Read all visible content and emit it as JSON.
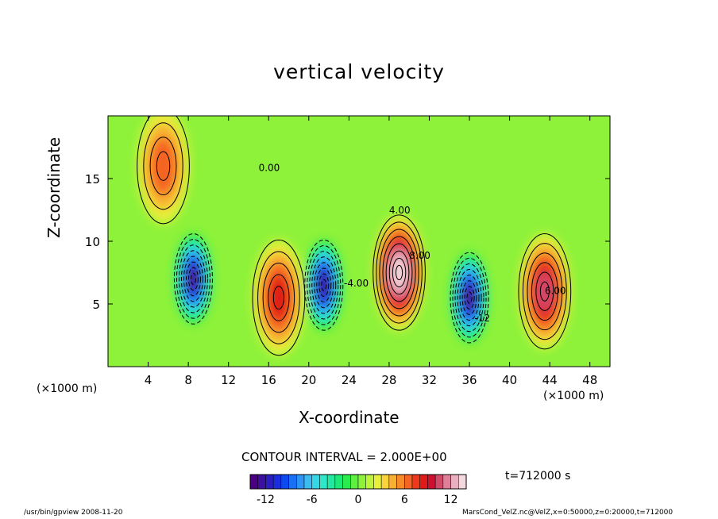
{
  "chart_data": {
    "type": "heatmap",
    "title": "vertical velocity",
    "xlabel": "X-coordinate",
    "ylabel": "Z-coordinate",
    "x_unit_label_left": "(×1000 m)",
    "x_unit_label_right": "(×1000 m)",
    "xlim": [
      0,
      50
    ],
    "ylim": [
      0,
      20
    ],
    "x_ticks": [
      4,
      8,
      12,
      16,
      20,
      24,
      28,
      32,
      36,
      40,
      44,
      48
    ],
    "y_ticks": [
      5,
      10,
      15
    ],
    "contour_interval_label": "CONTOUR INTERVAL = 2.000E+00",
    "time_label": "t=712000 s",
    "colorbar": {
      "range": [
        -14,
        14
      ],
      "ticks": [
        -12,
        -6,
        0,
        6,
        12
      ],
      "colors": [
        "#4b0082",
        "#3c0fa0",
        "#2a1ec0",
        "#1a2ee0",
        "#0a4af0",
        "#1a70f5",
        "#2d95f5",
        "#3cbaf2",
        "#35d6e6",
        "#2ee6c8",
        "#22e8a0",
        "#1cea78",
        "#2aec4e",
        "#5ef040",
        "#8ef23a",
        "#bef43a",
        "#e6f03a",
        "#f8d43a",
        "#f8b032",
        "#f88a2a",
        "#f46422",
        "#ee3a1c",
        "#e01a18",
        "#ce1030",
        "#d24a6a",
        "#e07f98",
        "#eab0c0",
        "#f4d8e0"
      ]
    },
    "annotations": [
      "0.00",
      "4.00",
      "-4.00",
      "-12",
      "8.00",
      "6.00"
    ],
    "features": [
      {
        "kind": "updraft",
        "x": 29,
        "z": 7.5,
        "w": 14
      },
      {
        "kind": "updraft",
        "x": 43.5,
        "z": 6,
        "w": 10
      },
      {
        "kind": "updraft",
        "x": 17,
        "z": 5.5,
        "w": 8
      },
      {
        "kind": "updraft",
        "x": 5.5,
        "z": 16,
        "w": 6
      },
      {
        "kind": "downdraft",
        "x": 8.5,
        "z": 7,
        "w": -14
      },
      {
        "kind": "downdraft",
        "x": 21.5,
        "z": 6.5,
        "w": -13
      },
      {
        "kind": "downdraft",
        "x": 36,
        "z": 5.5,
        "w": -14
      }
    ]
  },
  "footer": {
    "left": "/usr/bin/gpview   2008-11-20",
    "right": "MarsCond_VelZ.nc@VelZ,x=0:50000,z=0:20000,t=712000"
  }
}
